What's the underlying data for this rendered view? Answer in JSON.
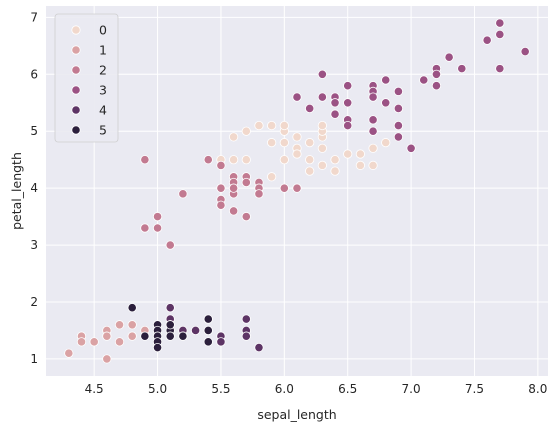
{
  "chart_data": {
    "type": "scatter",
    "title": "",
    "xlabel": "sepal_length",
    "ylabel": "petal_length",
    "xlim": [
      4.12,
      8.08
    ],
    "ylim": [
      0.7,
      7.2
    ],
    "xticks": [
      4.5,
      5.0,
      5.5,
      6.0,
      6.5,
      7.0,
      7.5,
      8.0
    ],
    "xtick_labels": [
      "4.5",
      "5.0",
      "5.5",
      "6.0",
      "6.5",
      "7.0",
      "7.5",
      "8.0"
    ],
    "yticks": [
      1,
      2,
      3,
      4,
      5,
      6,
      7
    ],
    "ytick_labels": [
      "1",
      "2",
      "3",
      "4",
      "5",
      "6",
      "7"
    ],
    "grid": true,
    "legend_position": "top-left",
    "colors": {
      "background": "#eaeaf2",
      "grid": "#ffffff",
      "legend_bg": "#eaeaf2",
      "hue_0": "#f1d8cc",
      "hue_1": "#daa2a4",
      "hue_2": "#c27a91",
      "hue_3": "#9b5284",
      "hue_4": "#5d3465",
      "hue_5": "#2b1f3c"
    },
    "legend": [
      "0",
      "1",
      "2",
      "3",
      "4",
      "5"
    ],
    "series": [
      {
        "name": "0",
        "color": "#f1d8cc",
        "points": [
          [
            5.6,
            4.9
          ],
          [
            5.6,
            4.5
          ],
          [
            5.7,
            4.5
          ],
          [
            5.7,
            5.0
          ],
          [
            5.8,
            5.1
          ],
          [
            5.9,
            4.2
          ],
          [
            5.9,
            4.8
          ],
          [
            5.9,
            5.1
          ],
          [
            6.0,
            4.5
          ],
          [
            6.0,
            5.0
          ],
          [
            6.0,
            5.1
          ],
          [
            6.0,
            4.8
          ],
          [
            6.1,
            4.9
          ],
          [
            6.1,
            4.7
          ],
          [
            6.1,
            4.6
          ],
          [
            6.2,
            4.8
          ],
          [
            6.2,
            4.5
          ],
          [
            6.2,
            4.3
          ],
          [
            6.3,
            4.9
          ],
          [
            6.3,
            5.0
          ],
          [
            6.3,
            5.1
          ],
          [
            6.3,
            4.7
          ],
          [
            6.3,
            4.4
          ],
          [
            6.4,
            4.5
          ],
          [
            6.4,
            4.3
          ],
          [
            6.5,
            4.6
          ],
          [
            6.6,
            4.4
          ],
          [
            6.6,
            4.6
          ],
          [
            6.7,
            4.7
          ],
          [
            6.7,
            4.4
          ],
          [
            6.8,
            4.8
          ],
          [
            5.5,
            4.5
          ]
        ]
      },
      {
        "name": "1",
        "color": "#daa2a4",
        "points": [
          [
            4.3,
            1.1
          ],
          [
            4.4,
            1.4
          ],
          [
            4.4,
            1.3
          ],
          [
            4.5,
            1.3
          ],
          [
            4.6,
            1.5
          ],
          [
            4.6,
            1.4
          ],
          [
            4.6,
            1.0
          ],
          [
            4.7,
            1.6
          ],
          [
            4.7,
            1.3
          ],
          [
            4.8,
            1.6
          ],
          [
            4.8,
            1.4
          ],
          [
            4.9,
            1.5
          ],
          [
            5.0,
            1.5
          ],
          [
            5.0,
            1.2
          ],
          [
            5.0,
            1.3
          ]
        ]
      },
      {
        "name": "2",
        "color": "#c27a91",
        "points": [
          [
            4.9,
            4.5
          ],
          [
            4.9,
            3.3
          ],
          [
            5.0,
            3.5
          ],
          [
            5.0,
            3.3
          ],
          [
            5.1,
            3.0
          ],
          [
            5.2,
            3.9
          ],
          [
            5.4,
            4.5
          ],
          [
            5.5,
            4.4
          ],
          [
            5.5,
            4.0
          ],
          [
            5.5,
            3.8
          ],
          [
            5.5,
            3.7
          ],
          [
            5.6,
            4.2
          ],
          [
            5.6,
            4.1
          ],
          [
            5.6,
            3.9
          ],
          [
            5.6,
            3.6
          ],
          [
            5.6,
            4.0
          ],
          [
            5.7,
            4.2
          ],
          [
            5.7,
            4.1
          ],
          [
            5.7,
            3.5
          ],
          [
            5.8,
            4.1
          ],
          [
            5.8,
            4.0
          ],
          [
            5.8,
            3.9
          ],
          [
            6.0,
            4.0
          ],
          [
            6.1,
            4.0
          ]
        ]
      },
      {
        "name": "3",
        "color": "#9b5284",
        "points": [
          [
            6.1,
            5.6
          ],
          [
            6.2,
            5.4
          ],
          [
            6.3,
            6.0
          ],
          [
            6.3,
            5.6
          ],
          [
            6.4,
            5.6
          ],
          [
            6.4,
            5.5
          ],
          [
            6.4,
            5.3
          ],
          [
            6.5,
            5.8
          ],
          [
            6.5,
            5.5
          ],
          [
            6.5,
            5.2
          ],
          [
            6.5,
            5.1
          ],
          [
            6.7,
            5.8
          ],
          [
            6.7,
            5.7
          ],
          [
            6.7,
            5.6
          ],
          [
            6.7,
            5.2
          ],
          [
            6.7,
            5.0
          ],
          [
            6.8,
            5.9
          ],
          [
            6.8,
            5.5
          ],
          [
            6.9,
            5.7
          ],
          [
            6.9,
            5.4
          ],
          [
            6.9,
            5.1
          ],
          [
            6.9,
            4.9
          ],
          [
            7.0,
            4.7
          ],
          [
            7.1,
            5.9
          ],
          [
            7.2,
            6.1
          ],
          [
            7.2,
            6.0
          ],
          [
            7.2,
            5.8
          ],
          [
            7.3,
            6.3
          ],
          [
            7.4,
            6.1
          ],
          [
            7.6,
            6.6
          ],
          [
            7.7,
            6.9
          ],
          [
            7.7,
            6.7
          ],
          [
            7.7,
            6.1
          ],
          [
            7.9,
            6.4
          ]
        ]
      },
      {
        "name": "4",
        "color": "#5d3465",
        "points": [
          [
            5.1,
            1.9
          ],
          [
            5.1,
            1.7
          ],
          [
            5.1,
            1.6
          ],
          [
            5.2,
            1.5
          ],
          [
            5.2,
            1.4
          ],
          [
            5.3,
            1.5
          ],
          [
            5.4,
            1.7
          ],
          [
            5.4,
            1.5
          ],
          [
            5.5,
            1.4
          ],
          [
            5.5,
            1.3
          ],
          [
            5.7,
            1.7
          ],
          [
            5.7,
            1.5
          ],
          [
            5.7,
            1.4
          ],
          [
            5.8,
            1.2
          ],
          [
            5.1,
            1.5
          ]
        ]
      },
      {
        "name": "5",
        "color": "#2b1f3c",
        "points": [
          [
            4.8,
            1.9
          ],
          [
            4.9,
            1.4
          ],
          [
            5.0,
            1.6
          ],
          [
            5.0,
            1.5
          ],
          [
            5.0,
            1.4
          ],
          [
            5.0,
            1.3
          ],
          [
            5.0,
            1.2
          ],
          [
            5.1,
            1.5
          ],
          [
            5.1,
            1.4
          ],
          [
            5.2,
            1.4
          ],
          [
            5.4,
            1.7
          ],
          [
            5.4,
            1.5
          ],
          [
            5.4,
            1.3
          ],
          [
            5.1,
            1.6
          ]
        ]
      }
    ]
  }
}
